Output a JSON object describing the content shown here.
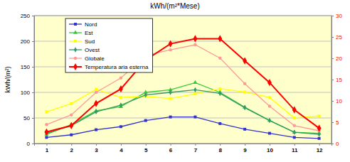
{
  "chart_data": {
    "type": "line",
    "title": "kWh/(m²*Mese)",
    "y_label": "kWh/(m²)",
    "categories": [
      "1",
      "2",
      "3",
      "4",
      "5",
      "6",
      "7",
      "8",
      "9",
      "10",
      "11",
      "12"
    ],
    "series": [
      {
        "name": "Nord",
        "color": "#3333cc",
        "marker": "square",
        "line_style": "solid",
        "values": [
          12,
          17,
          27,
          33,
          45,
          52,
          52,
          39,
          28,
          20,
          12,
          10
        ]
      },
      {
        "name": "Est",
        "color": "#33cc33",
        "marker": "triangle",
        "line_style": "solid",
        "values": [
          18,
          37,
          64,
          72,
          100,
          105,
          119,
          100,
          71,
          45,
          22,
          20
        ]
      },
      {
        "name": "Sud",
        "color": "#ffff00",
        "marker": "square",
        "line_style": "solid",
        "values": [
          62,
          78,
          106,
          90,
          92,
          88,
          97,
          107,
          101,
          90,
          50,
          54
        ]
      },
      {
        "name": "Ovest",
        "color": "#339966",
        "marker": "diamond",
        "line_style": "solid",
        "values": [
          20,
          35,
          62,
          75,
          95,
          100,
          105,
          98,
          70,
          45,
          22,
          18
        ]
      },
      {
        "name": "Globale",
        "color": "#ff9999",
        "marker": "circle",
        "line_style": "solid",
        "values": [
          37,
          56,
          100,
          128,
          172,
          183,
          193,
          167,
          117,
          73,
          35,
          25
        ]
      },
      {
        "name": "Temperatura aria esterna",
        "color": "#ff0000",
        "marker": "diamond",
        "line_style": "solid",
        "axis": "y2",
        "values": [
          2.7,
          4.2,
          9.4,
          12.8,
          19.6,
          23.4,
          24.6,
          24.6,
          19.4,
          14.3,
          7.9,
          3.6
        ]
      }
    ],
    "ylim": [
      0,
      250
    ],
    "yticks": [
      0,
      50,
      100,
      150,
      200,
      250
    ],
    "y2lim": [
      0,
      30
    ],
    "y2ticks": [
      0,
      5,
      10,
      15,
      20,
      25,
      30
    ],
    "grid": true,
    "legend": "upper left"
  }
}
